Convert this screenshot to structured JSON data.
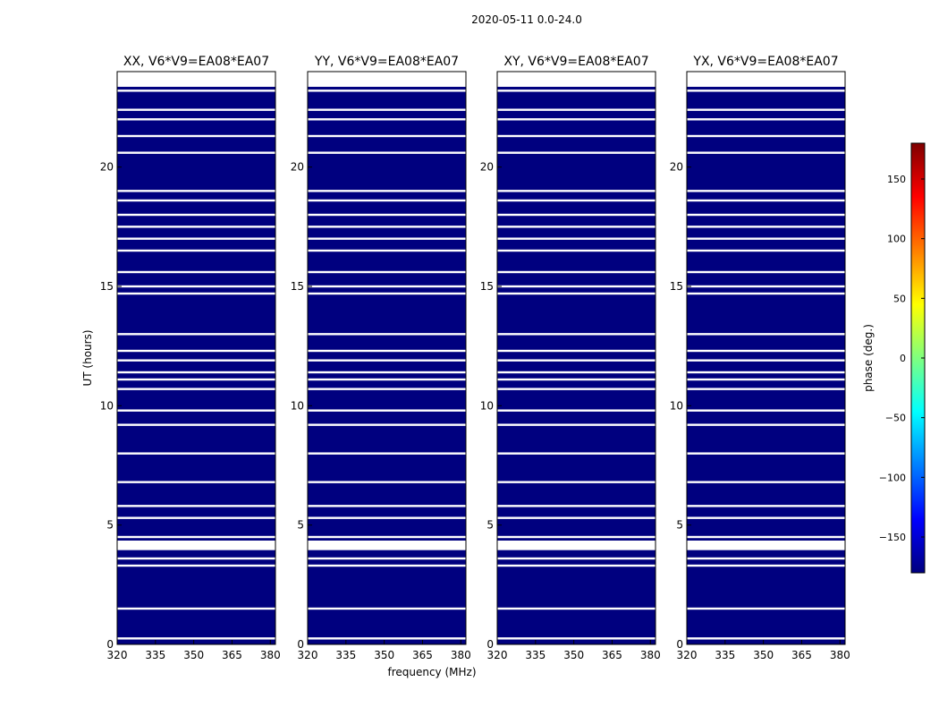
{
  "figure": {
    "suptitle": "2020-05-11 0.0-24.0",
    "xlabel": "frequency (MHz)",
    "ylabel": "UT (hours)"
  },
  "chart_data": {
    "type": "heatmap",
    "suptitle": "2020-05-11 0.0-24.0",
    "xlabel": "frequency (MHz)",
    "ylabel": "UT (hours)",
    "xlim": [
      320,
      382
    ],
    "ylim": [
      0,
      24
    ],
    "xticks": [
      320,
      335,
      350,
      365,
      380
    ],
    "yticks": [
      0,
      5,
      10,
      15,
      20
    ],
    "panels": [
      {
        "title": "XX, V6*V9=EA08*EA07"
      },
      {
        "title": "YY, V6*V9=EA08*EA07"
      },
      {
        "title": "XY, V6*V9=EA08*EA07"
      },
      {
        "title": "YX, V6*V9=EA08*EA07"
      }
    ],
    "colorbar": {
      "label": "phase (deg.)",
      "range": [
        -180,
        180
      ],
      "ticks": [
        -150,
        -100,
        -50,
        0,
        50,
        100,
        150
      ],
      "colormap": [
        "#00007f",
        "#0000ff",
        "#007fff",
        "#00ffff",
        "#7fff7f",
        "#ffff00",
        "#ff7f00",
        "#ff0000",
        "#7f0000"
      ]
    },
    "gaps_ut_hours": [
      0.25,
      1.5,
      3.3,
      3.6,
      4.2,
      4.5,
      5.3,
      5.8,
      6.8,
      8.0,
      9.2,
      9.8,
      10.7,
      11.1,
      11.4,
      11.9,
      12.3,
      13.0,
      14.7,
      15.0,
      15.6,
      16.5,
      17.0,
      17.5,
      18.0,
      18.6,
      19.0,
      20.6,
      21.3,
      22.0,
      22.4,
      23.2,
      23.5,
      23.6,
      23.8
    ]
  }
}
